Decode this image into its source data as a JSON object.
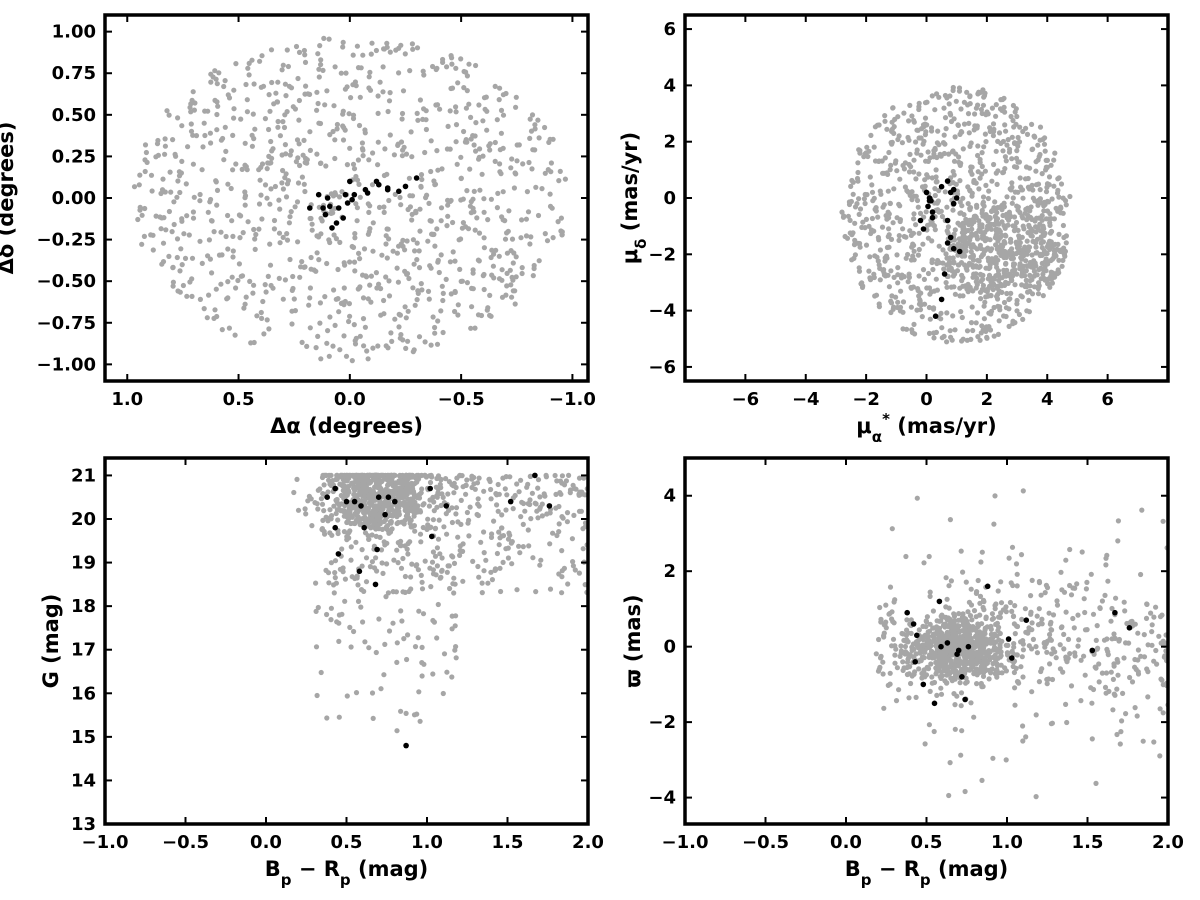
{
  "colors": {
    "field": "#a6a6a6",
    "members": "#000000",
    "axes": "#000000",
    "background": "#ffffff"
  },
  "chart_data": [
    {
      "type": "scatter",
      "panel": "sky-positions",
      "xlabel_parts": [
        {
          "t": "Δα (degrees)"
        }
      ],
      "ylabel_parts": [
        {
          "t": "Δδ (degrees)"
        }
      ],
      "xlim": [
        1.1,
        -1.07
      ],
      "ylim": [
        -1.1,
        1.1
      ],
      "xticks": [
        1.0,
        0.5,
        0.0,
        -0.5,
        -1.0
      ],
      "xtick_labels": [
        "1.0",
        "0.5",
        "0.0",
        "−0.5",
        "−1.0"
      ],
      "yticks": [
        -1.0,
        -0.75,
        -0.5,
        -0.25,
        0.0,
        0.25,
        0.5,
        0.75,
        1.0
      ],
      "ytick_labels": [
        "−1.00",
        "−0.75",
        "−0.50",
        "−0.25",
        "0.00",
        "0.25",
        "0.50",
        "0.75",
        "1.00"
      ],
      "grid": false,
      "series": [
        {
          "marker_color": "#a6a6a6",
          "generated": {
            "shape": "disk",
            "cx": 0.0,
            "cy": 0.0,
            "r": 0.98,
            "n": 1000,
            "seed": 11
          }
        },
        {
          "marker_color": "#000000",
          "points": [
            [
              0.18,
              -0.06
            ],
            [
              0.12,
              -0.06
            ],
            [
              0.09,
              -0.05
            ],
            [
              0.05,
              -0.06
            ],
            [
              0.14,
              0.02
            ],
            [
              0.1,
              0.0
            ],
            [
              0.11,
              -0.1
            ],
            [
              0.08,
              -0.18
            ],
            [
              0.06,
              -0.15
            ],
            [
              0.03,
              -0.12
            ],
            [
              0.01,
              -0.03
            ],
            [
              -0.01,
              -0.01
            ],
            [
              0.02,
              0.02
            ],
            [
              0.0,
              0.1
            ],
            [
              -0.07,
              0.05
            ],
            [
              -0.12,
              0.1
            ],
            [
              -0.13,
              0.08
            ],
            [
              -0.08,
              0.03
            ],
            [
              -0.17,
              0.06
            ],
            [
              -0.22,
              0.04
            ],
            [
              -0.25,
              0.07
            ],
            [
              -0.3,
              0.12
            ],
            [
              -0.02,
              0.02
            ],
            [
              -0.17,
              0.05
            ]
          ]
        }
      ]
    },
    {
      "type": "scatter",
      "panel": "proper-motion",
      "xlabel_parts": [
        {
          "t": "μ"
        },
        {
          "t": "α",
          "sub": true
        },
        {
          "t": "*",
          "sup": true
        },
        {
          "t": "  (mas/yr)"
        }
      ],
      "ylabel_parts": [
        {
          "t": "μ"
        },
        {
          "t": "δ",
          "sub": true
        },
        {
          "t": " (mas/yr)"
        }
      ],
      "xlim": [
        -8.0,
        8.0
      ],
      "ylim": [
        -6.5,
        6.5
      ],
      "xticks": [
        -6,
        -4,
        -2,
        0,
        2,
        4,
        6
      ],
      "xtick_labels": [
        "−6",
        "−4",
        "−2",
        "0",
        "2",
        "4",
        "6"
      ],
      "yticks": [
        -6,
        -4,
        -2,
        0,
        2,
        4,
        6
      ],
      "ytick_labels": [
        "−6",
        "−4",
        "−2",
        "0",
        "2",
        "4",
        "6"
      ],
      "grid": false,
      "series": [
        {
          "marker_color": "#a6a6a6",
          "generated": {
            "shape": "ellipse",
            "cx": 1.0,
            "cy": -0.6,
            "rx": 3.8,
            "ry": 4.6,
            "dense_cx": 2.6,
            "dense_cy": -2.0,
            "dense_rx": 2.0,
            "dense_ry": 1.6,
            "n": 1000,
            "n_dense": 350,
            "seed": 23
          }
        },
        {
          "marker_color": "#000000",
          "points": [
            [
              0.0,
              0.2
            ],
            [
              0.1,
              0.0
            ],
            [
              0.15,
              -0.1
            ],
            [
              0.05,
              -0.3
            ],
            [
              0.2,
              -0.5
            ],
            [
              0.2,
              -0.7
            ],
            [
              -0.2,
              -0.8
            ],
            [
              0.5,
              0.4
            ],
            [
              0.7,
              0.6
            ],
            [
              0.8,
              0.2
            ],
            [
              0.9,
              0.3
            ],
            [
              1.0,
              0.0
            ],
            [
              0.7,
              -0.8
            ],
            [
              0.9,
              -0.2
            ],
            [
              0.8,
              -1.4
            ],
            [
              0.7,
              -1.6
            ],
            [
              0.9,
              -1.8
            ],
            [
              1.1,
              -1.9
            ],
            [
              0.6,
              -2.7
            ],
            [
              0.5,
              -3.6
            ],
            [
              0.3,
              -4.2
            ],
            [
              -0.1,
              -1.1
            ],
            [
              0.1,
              -0.1
            ]
          ]
        }
      ]
    },
    {
      "type": "scatter",
      "panel": "color-magnitude",
      "xlabel_parts": [
        {
          "t": "B"
        },
        {
          "t": "p",
          "sub": true
        },
        {
          "t": " − R"
        },
        {
          "t": "p",
          "sub": true
        },
        {
          "t": " (mag)"
        }
      ],
      "ylabel_parts": [
        {
          "t": "G (mag)"
        }
      ],
      "xlim": [
        -1.0,
        2.0
      ],
      "ylim": [
        13.0,
        21.4
      ],
      "xticks": [
        -1.0,
        -0.5,
        0.0,
        0.5,
        1.0,
        1.5,
        2.0
      ],
      "xtick_labels": [
        "−1.0",
        "−0.5",
        "0.0",
        "0.5",
        "1.0",
        "1.5",
        "2.0"
      ],
      "yticks": [
        13,
        14,
        15,
        16,
        17,
        18,
        19,
        20,
        21
      ],
      "ytick_labels": [
        "13",
        "14",
        "15",
        "16",
        "17",
        "18",
        "19",
        "20",
        "21"
      ],
      "grid": false,
      "series": [
        {
          "marker_color": "#a6a6a6",
          "generated": {
            "shape": "cmd",
            "n_clump": 620,
            "clump_cx": 0.7,
            "clump_cy": 20.5,
            "clump_sx": 0.18,
            "clump_sy": 0.45,
            "n_band": 380,
            "band_x": [
              0.35,
              2.0
            ],
            "band_y": [
              18.3,
              21.0
            ],
            "n_tail": 110,
            "tail_x": [
              0.3,
              1.2
            ],
            "tail_y": [
              15.0,
              19.0
            ],
            "seed": 37
          }
        },
        {
          "marker_color": "#000000",
          "points": [
            [
              0.38,
              20.5
            ],
            [
              0.43,
              20.7
            ],
            [
              0.5,
              20.4
            ],
            [
              0.55,
              20.4
            ],
            [
              0.59,
              20.3
            ],
            [
              0.43,
              19.8
            ],
            [
              0.61,
              19.8
            ],
            [
              0.7,
              20.5
            ],
            [
              0.74,
              20.1
            ],
            [
              0.45,
              19.2
            ],
            [
              0.58,
              18.8
            ],
            [
              0.69,
              19.3
            ],
            [
              0.68,
              18.5
            ],
            [
              1.02,
              20.7
            ],
            [
              1.03,
              19.6
            ],
            [
              1.12,
              20.3
            ],
            [
              1.52,
              20.4
            ],
            [
              1.67,
              21.0
            ],
            [
              1.76,
              20.3
            ],
            [
              0.87,
              14.8
            ],
            [
              0.8,
              20.4
            ],
            [
              0.76,
              20.5
            ]
          ]
        }
      ]
    },
    {
      "type": "scatter",
      "panel": "parallax-color",
      "xlabel_parts": [
        {
          "t": "B"
        },
        {
          "t": "p",
          "sub": true
        },
        {
          "t": " − R"
        },
        {
          "t": "p",
          "sub": true
        },
        {
          "t": " (mag)"
        }
      ],
      "ylabel_parts": [
        {
          "t": "ϖ (mas)"
        }
      ],
      "xlim": [
        -1.0,
        2.0
      ],
      "ylim": [
        -4.7,
        5.0
      ],
      "xticks": [
        -1.0,
        -0.5,
        0.0,
        0.5,
        1.0,
        1.5,
        2.0
      ],
      "xtick_labels": [
        "−1.0",
        "−0.5",
        "0.0",
        "0.5",
        "1.0",
        "1.5",
        "2.0"
      ],
      "yticks": [
        -4,
        -2,
        0,
        2,
        4
      ],
      "ytick_labels": [
        "−4",
        "−2",
        "0",
        "2",
        "4"
      ],
      "grid": false,
      "series": [
        {
          "marker_color": "#a6a6a6",
          "generated": {
            "shape": "plx",
            "n_core": 620,
            "core_cx": 0.7,
            "core_cy": 0.0,
            "core_sx": 0.15,
            "core_sy": 0.45,
            "n_wide": 420,
            "wide_x": [
              0.2,
              2.0
            ],
            "wide_sy": 1.2,
            "n_out": 60,
            "seed": 53
          }
        },
        {
          "marker_color": "#000000",
          "points": [
            [
              0.38,
              0.9
            ],
            [
              0.42,
              0.6
            ],
            [
              0.44,
              0.3
            ],
            [
              0.43,
              -0.4
            ],
            [
              0.48,
              -1.0
            ],
            [
              0.55,
              -1.5
            ],
            [
              0.58,
              1.2
            ],
            [
              0.59,
              0.0
            ],
            [
              0.63,
              0.1
            ],
            [
              0.69,
              -0.2
            ],
            [
              0.7,
              -0.1
            ],
            [
              0.72,
              -0.8
            ],
            [
              0.74,
              -1.4
            ],
            [
              0.76,
              0.0
            ],
            [
              0.88,
              1.6
            ],
            [
              1.01,
              0.2
            ],
            [
              1.03,
              -0.3
            ],
            [
              1.12,
              0.7
            ],
            [
              1.53,
              -0.1
            ],
            [
              1.67,
              0.9
            ],
            [
              1.76,
              0.5
            ]
          ]
        }
      ]
    }
  ]
}
